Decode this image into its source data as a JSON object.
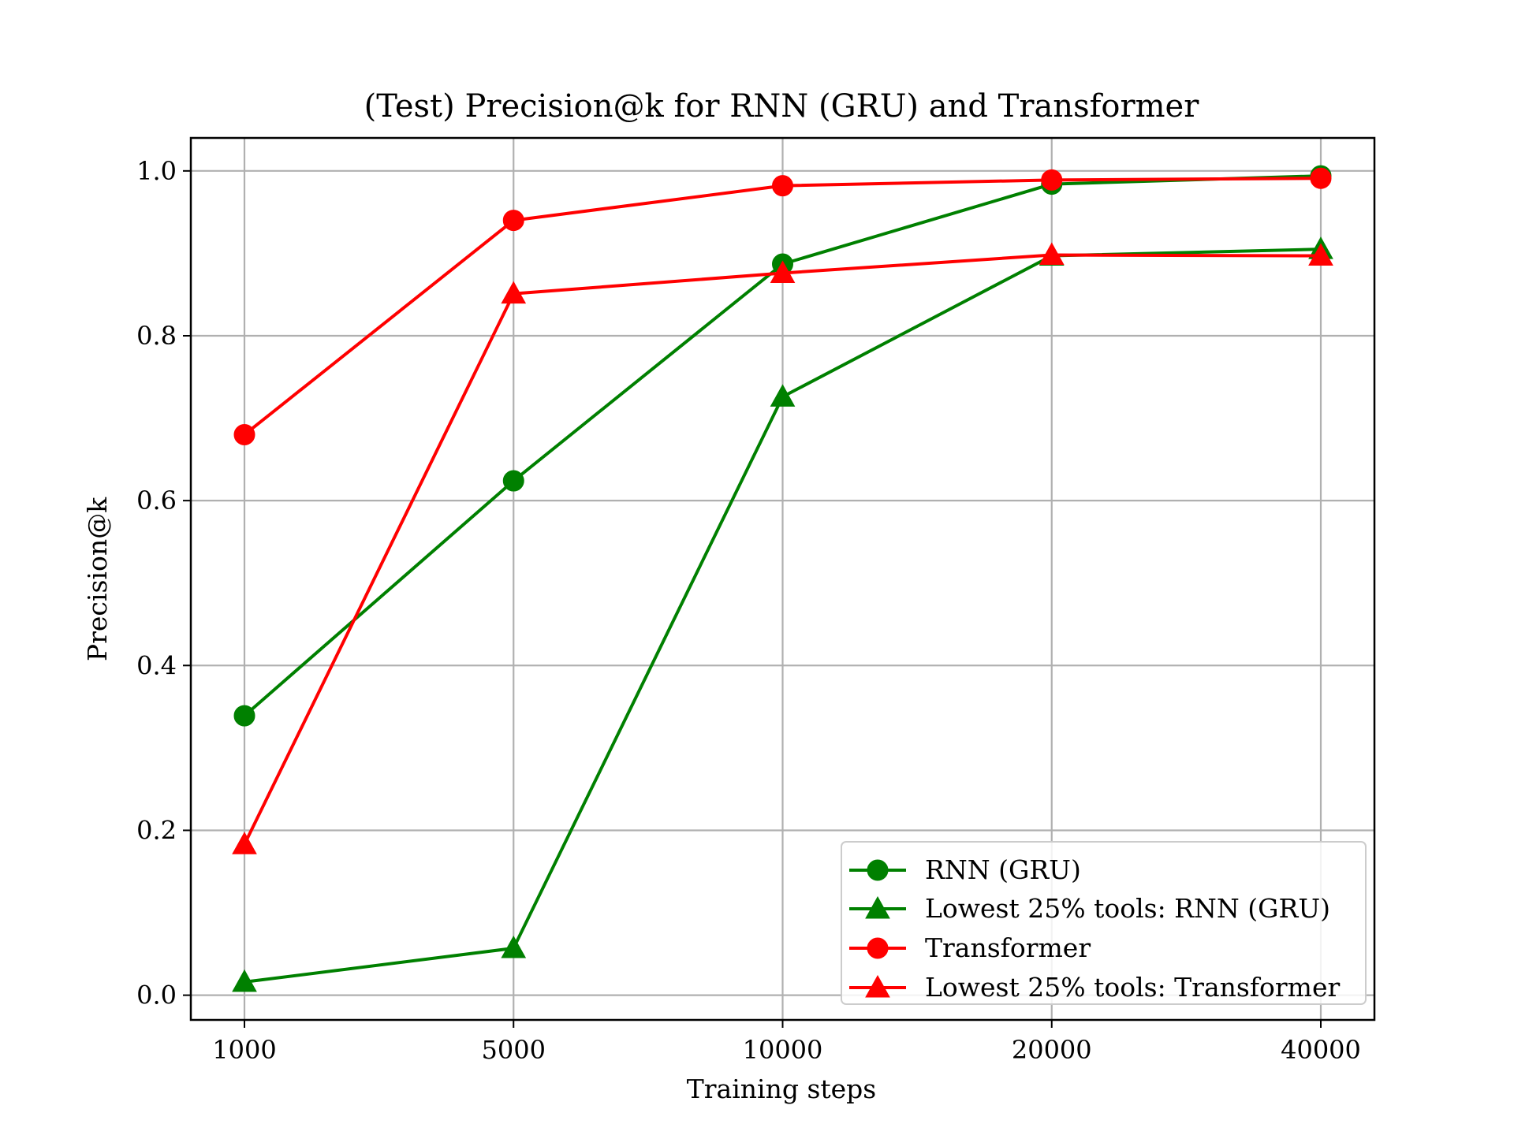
{
  "chart_data": {
    "type": "line",
    "title": "(Test) Precision@k for RNN (GRU) and Transformer",
    "xlabel": "Training steps",
    "ylabel": "Precision@k",
    "categories": [
      "1000",
      "5000",
      "10000",
      "20000",
      "40000"
    ],
    "ylim": [
      -0.03,
      1.04
    ],
    "yticks": [
      0.0,
      0.2,
      0.4,
      0.6,
      0.8,
      1.0
    ],
    "ytick_labels": [
      "0.0",
      "0.2",
      "0.4",
      "0.6",
      "0.8",
      "1.0"
    ],
    "grid": true,
    "legend_position": "bottom-right",
    "series": [
      {
        "name": "RNN (GRU)",
        "color": "#008000",
        "marker": "circle",
        "values": [
          0.339,
          0.624,
          0.887,
          0.984,
          0.994
        ]
      },
      {
        "name": "Lowest 25% tools: RNN (GRU)",
        "color": "#008000",
        "marker": "triangle",
        "values": [
          0.016,
          0.057,
          0.726,
          0.897,
          0.905
        ]
      },
      {
        "name": "Transformer",
        "color": "#ff0000",
        "marker": "circle",
        "values": [
          0.68,
          0.94,
          0.982,
          0.989,
          0.991
        ]
      },
      {
        "name": "Lowest 25% tools: Transformer",
        "color": "#ff0000",
        "marker": "triangle",
        "values": [
          0.183,
          0.851,
          0.876,
          0.898,
          0.897
        ]
      }
    ]
  }
}
